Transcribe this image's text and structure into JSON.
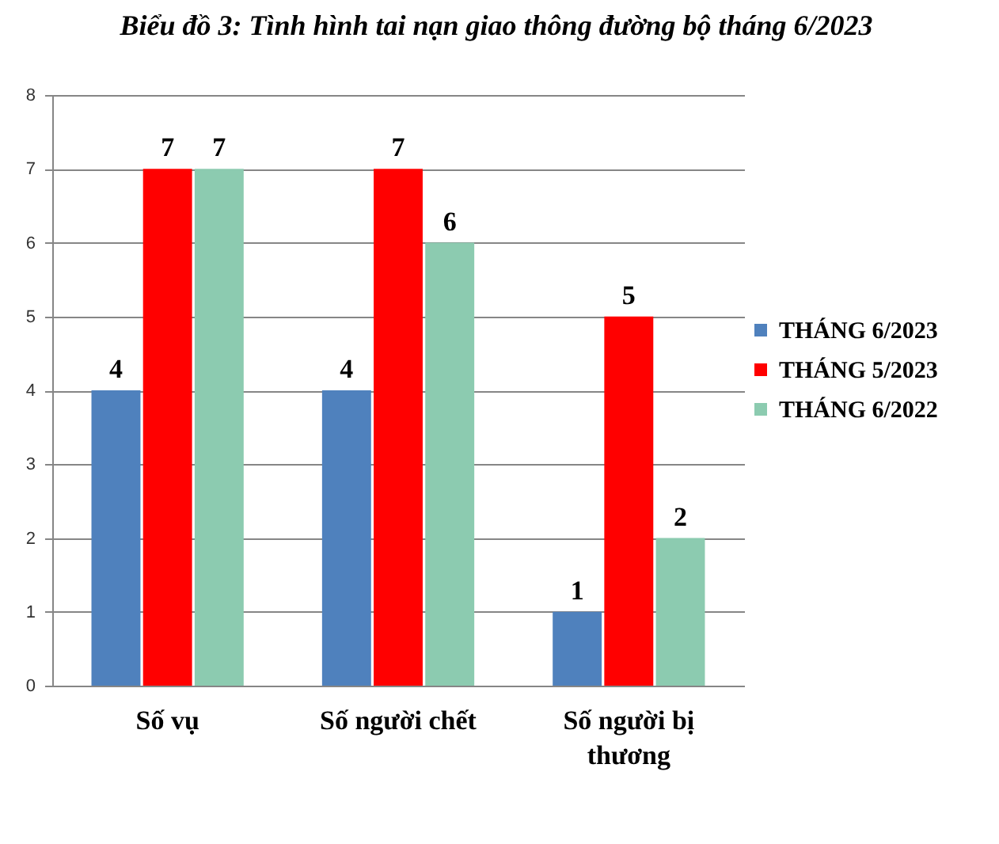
{
  "chart_data": {
    "type": "bar",
    "title": "Biểu đồ 3: Tình hình tai nạn giao thông đường bộ tháng 6/2023",
    "categories": [
      "Số vụ",
      "Số người chết",
      "Số người bị thương"
    ],
    "series": [
      {
        "name": "THÁNG 6/2023",
        "color": "#4f81bd",
        "values": [
          4,
          4,
          1
        ]
      },
      {
        "name": "THÁNG 5/2023",
        "color": "#ff0000",
        "values": [
          7,
          7,
          5
        ]
      },
      {
        "name": "THÁNG 6/2022",
        "color": "#8ccbb0",
        "values": [
          7,
          6,
          2
        ]
      }
    ],
    "ylim": [
      0,
      8
    ],
    "yticks": [
      0,
      1,
      2,
      3,
      4,
      5,
      6,
      7,
      8
    ],
    "grid": "y",
    "legend": "right",
    "data_labels": true
  }
}
